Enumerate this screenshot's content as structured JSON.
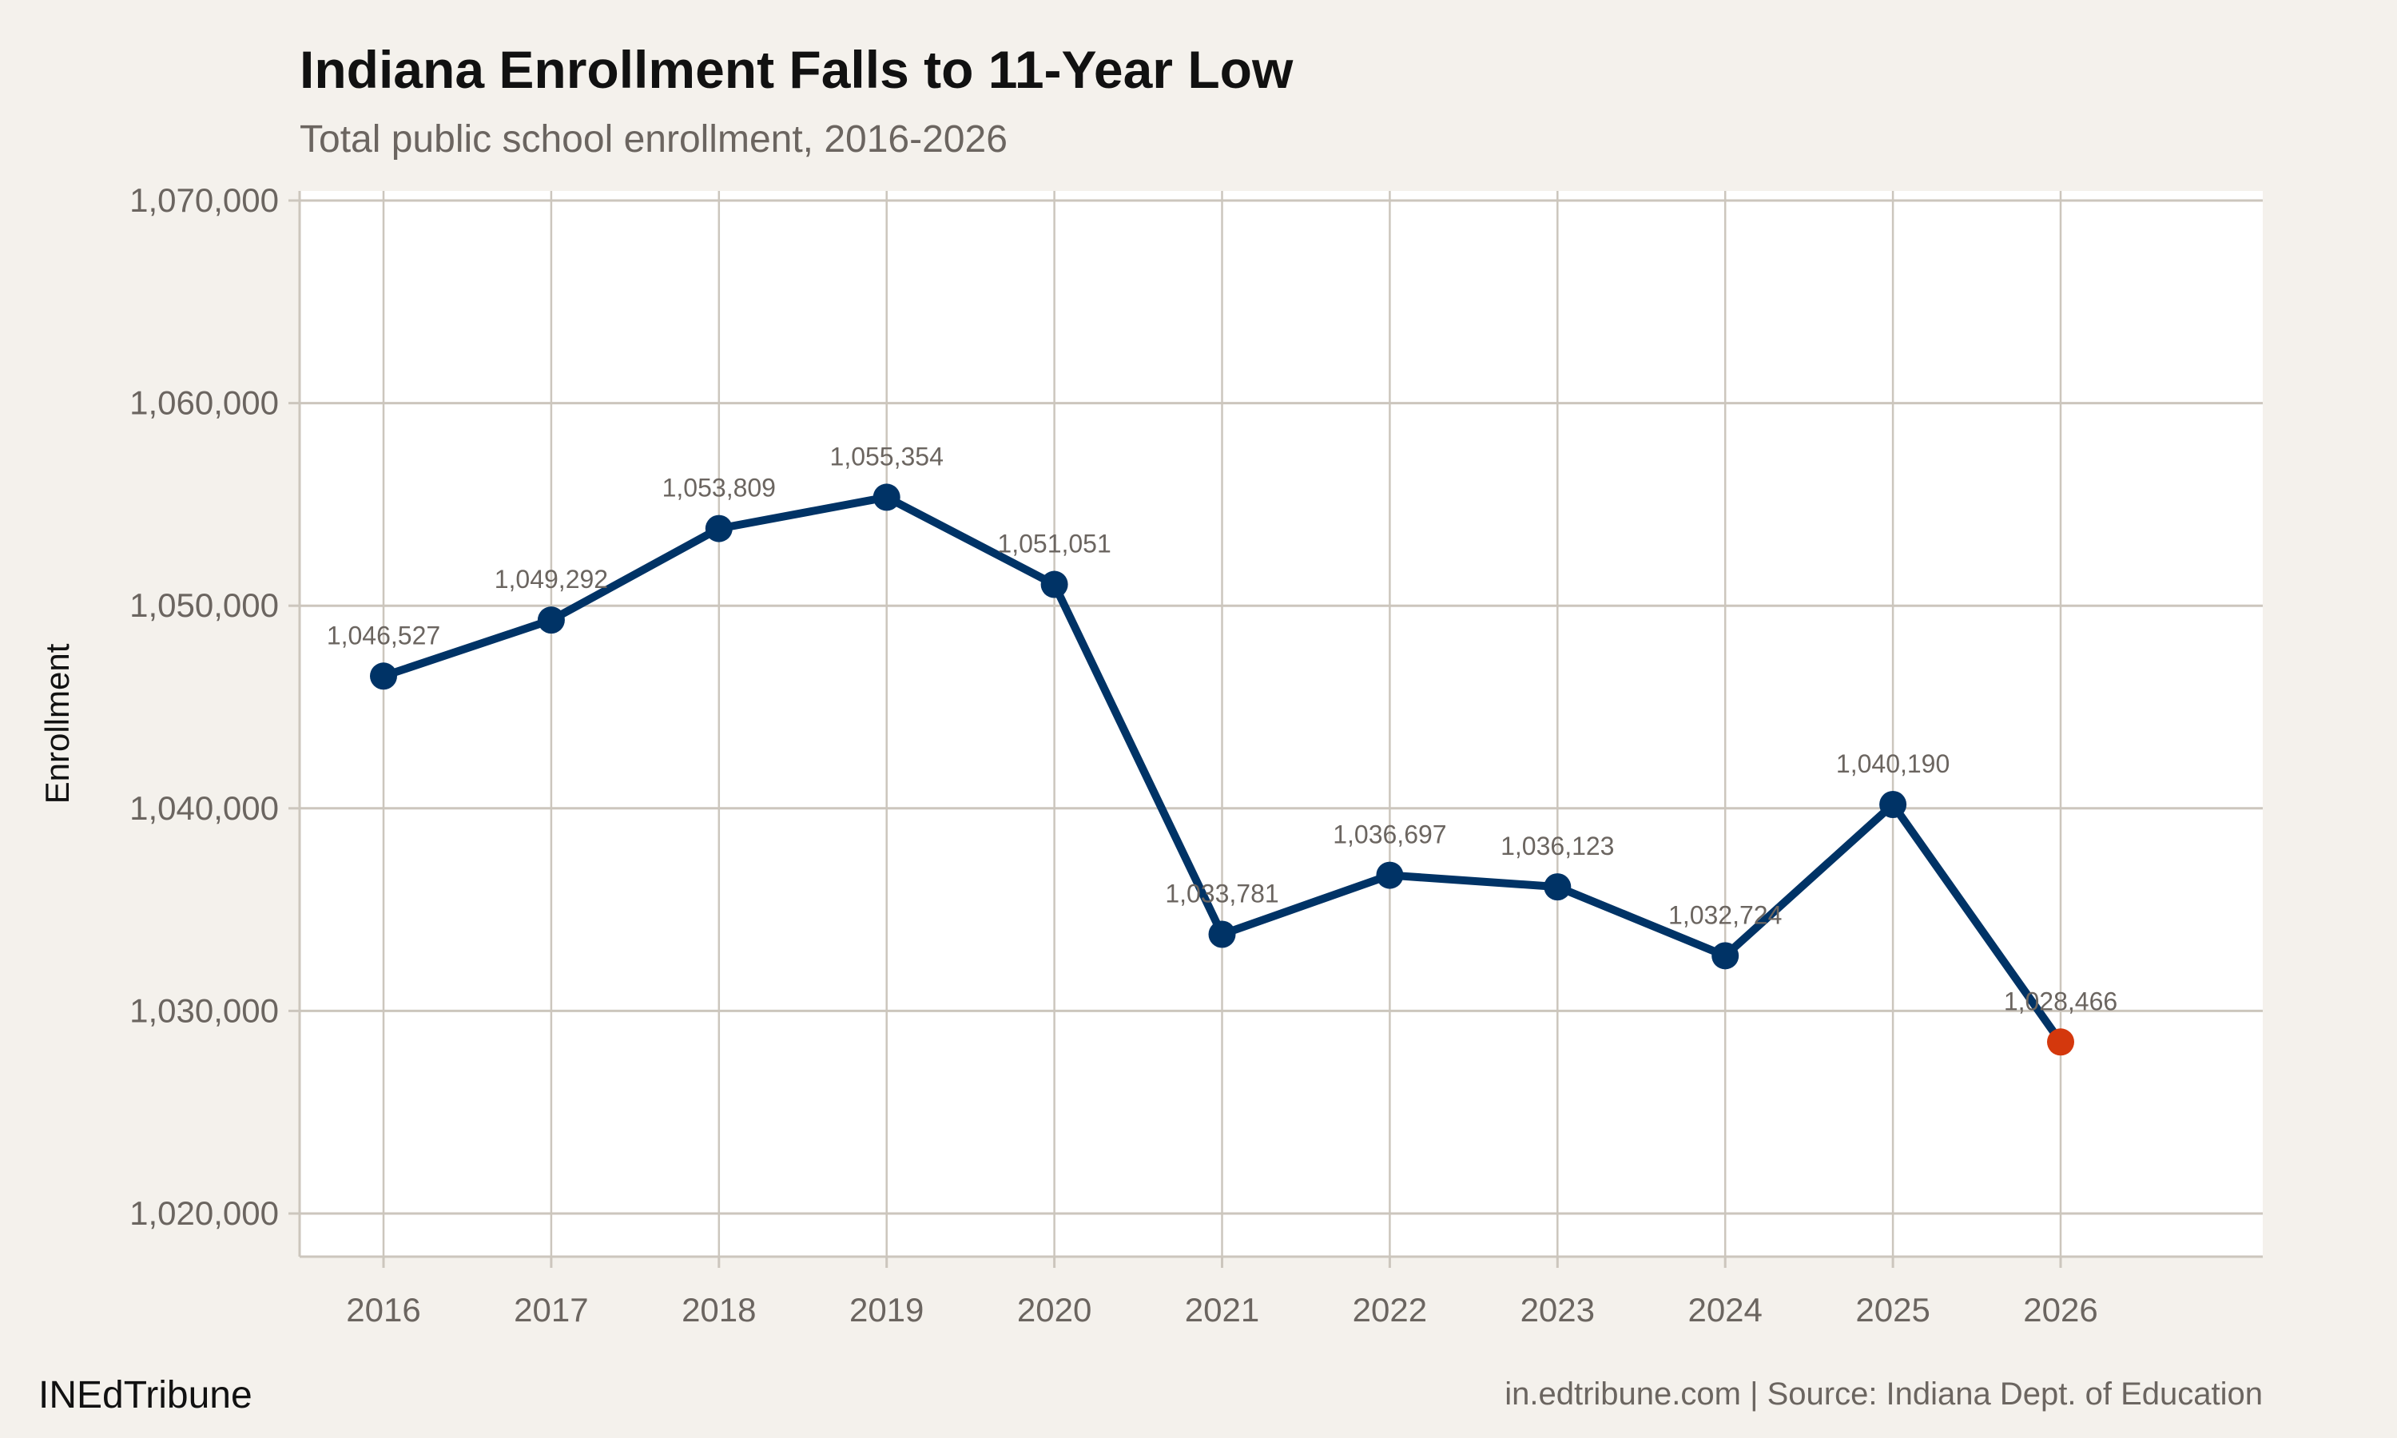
{
  "chart_data": {
    "type": "line",
    "title": "Indiana Enrollment Falls to 11-Year Low",
    "subtitle": "Total public school enrollment, 2016-2026",
    "xlabel": "",
    "ylabel": "Enrollment",
    "x": [
      2016,
      2017,
      2018,
      2019,
      2020,
      2021,
      2022,
      2023,
      2024,
      2025,
      2026
    ],
    "values": [
      1046527,
      1049292,
      1053809,
      1055354,
      1051051,
      1033781,
      1036697,
      1036123,
      1032724,
      1040190,
      1028466
    ],
    "data_labels": [
      "1,046,527",
      "1,049,292",
      "1,053,809",
      "1,055,354",
      "1,051,051",
      "1,033,781",
      "1,036,697",
      "1,036,123",
      "1,032,724",
      "1,040,190",
      "1,028,466"
    ],
    "x_tick_labels": [
      "2016",
      "2017",
      "2018",
      "2019",
      "2020",
      "2021",
      "2022",
      "2023",
      "2024",
      "2025",
      "2026"
    ],
    "y_ticks": [
      1020000,
      1030000,
      1040000,
      1050000,
      1060000,
      1070000
    ],
    "y_tick_labels": [
      "1,020,000",
      "1,030,000",
      "1,040,000",
      "1,050,000",
      "1,060,000",
      "1,070,000"
    ],
    "ylim": [
      1018000,
      1070500
    ],
    "xlim": [
      2015.5,
      2027.2
    ],
    "grid": true,
    "colors": {
      "line": "#003366",
      "highlight": "#d4380d",
      "grid": "#ccc6bd",
      "background": "#f4f1ec",
      "panel": "#ffffff"
    },
    "highlight_last_point": true
  },
  "footer": {
    "brand": "INEdTribune",
    "source": "in.edtribune.com | Source: Indiana Dept. of Education"
  }
}
